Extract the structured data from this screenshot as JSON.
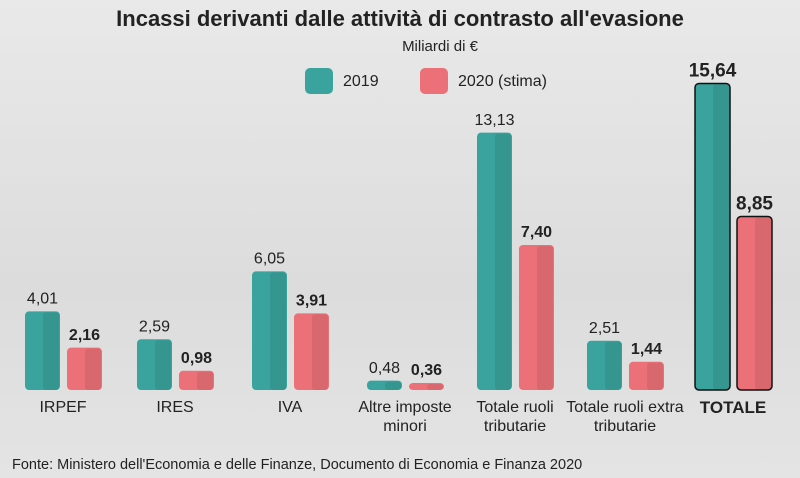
{
  "chart_data": {
    "type": "bar",
    "title": "Incassi derivanti dalle attività di contrasto all'evasione",
    "subtitle": "Miliardi di €",
    "categories": [
      "IRPEF",
      "IRES",
      "IVA",
      "Altre imposte minori",
      "Totale ruoli tributarie",
      "Totale ruoli extra tributarie",
      "TOTALE"
    ],
    "highlight_index": 6,
    "series": [
      {
        "name": "2019",
        "color": "#3aa39d",
        "values": [
          4.01,
          2.59,
          6.05,
          0.48,
          13.13,
          2.51,
          15.64
        ],
        "value_labels": [
          "4,01",
          "2,59",
          "6,05",
          "0,48",
          "13,13",
          "2,51",
          "15,64"
        ]
      },
      {
        "name": "2020 (stima)",
        "color": "#ec7078",
        "values": [
          2.16,
          0.98,
          3.91,
          0.36,
          7.4,
          1.44,
          8.85
        ],
        "value_labels": [
          "2,16",
          "0,98",
          "3,91",
          "0,36",
          "7,40",
          "1,44",
          "8,85"
        ]
      }
    ],
    "source": "Fonte: Ministero dell'Economia e delle Finanze, Documento di Economia e Finanza 2020"
  }
}
